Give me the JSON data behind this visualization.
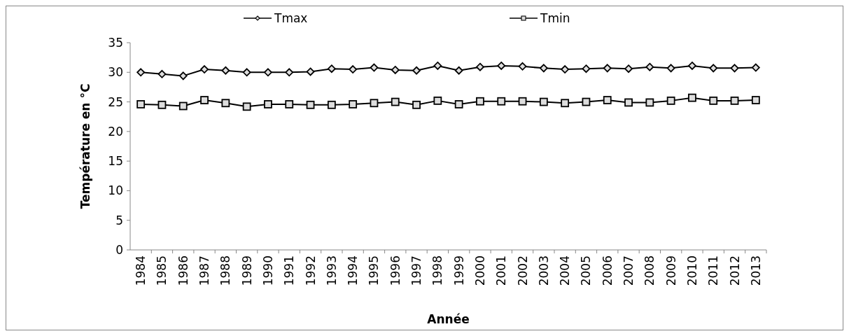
{
  "chart_data": {
    "type": "line",
    "xlabel": "Année",
    "ylabel": "Température en °C",
    "categories": [
      "1984",
      "1985",
      "1986",
      "1987",
      "1988",
      "1989",
      "1990",
      "1991",
      "1992",
      "1993",
      "1994",
      "1995",
      "1996",
      "1997",
      "1998",
      "1999",
      "2000",
      "2001",
      "2002",
      "2003",
      "2004",
      "2005",
      "2006",
      "2007",
      "2008",
      "2009",
      "2010",
      "2011",
      "2012",
      "2013"
    ],
    "series": [
      {
        "name": "Tmax",
        "color": "#000000",
        "marker": "diamond",
        "values": [
          30.0,
          29.7,
          29.4,
          30.5,
          30.3,
          30.0,
          30.0,
          30.0,
          30.1,
          30.6,
          30.5,
          30.8,
          30.4,
          30.3,
          31.1,
          30.3,
          30.9,
          31.1,
          31.0,
          30.7,
          30.5,
          30.6,
          30.7,
          30.6,
          30.9,
          30.7,
          31.1,
          30.7,
          30.7,
          30.8
        ]
      },
      {
        "name": "Tmin",
        "color": "#000000",
        "marker": "square",
        "values": [
          24.6,
          24.5,
          24.3,
          25.3,
          24.8,
          24.2,
          24.6,
          24.6,
          24.5,
          24.5,
          24.6,
          24.8,
          25.0,
          24.5,
          25.2,
          24.6,
          25.1,
          25.1,
          25.1,
          25.0,
          24.8,
          25.0,
          25.3,
          24.9,
          24.9,
          25.2,
          25.7,
          25.2,
          25.2,
          25.3
        ]
      }
    ],
    "ylim": [
      0,
      35
    ],
    "yticks": [
      0,
      5,
      10,
      15,
      20,
      25,
      30,
      35
    ],
    "grid": false,
    "legend": "top",
    "line_style": "solid"
  }
}
